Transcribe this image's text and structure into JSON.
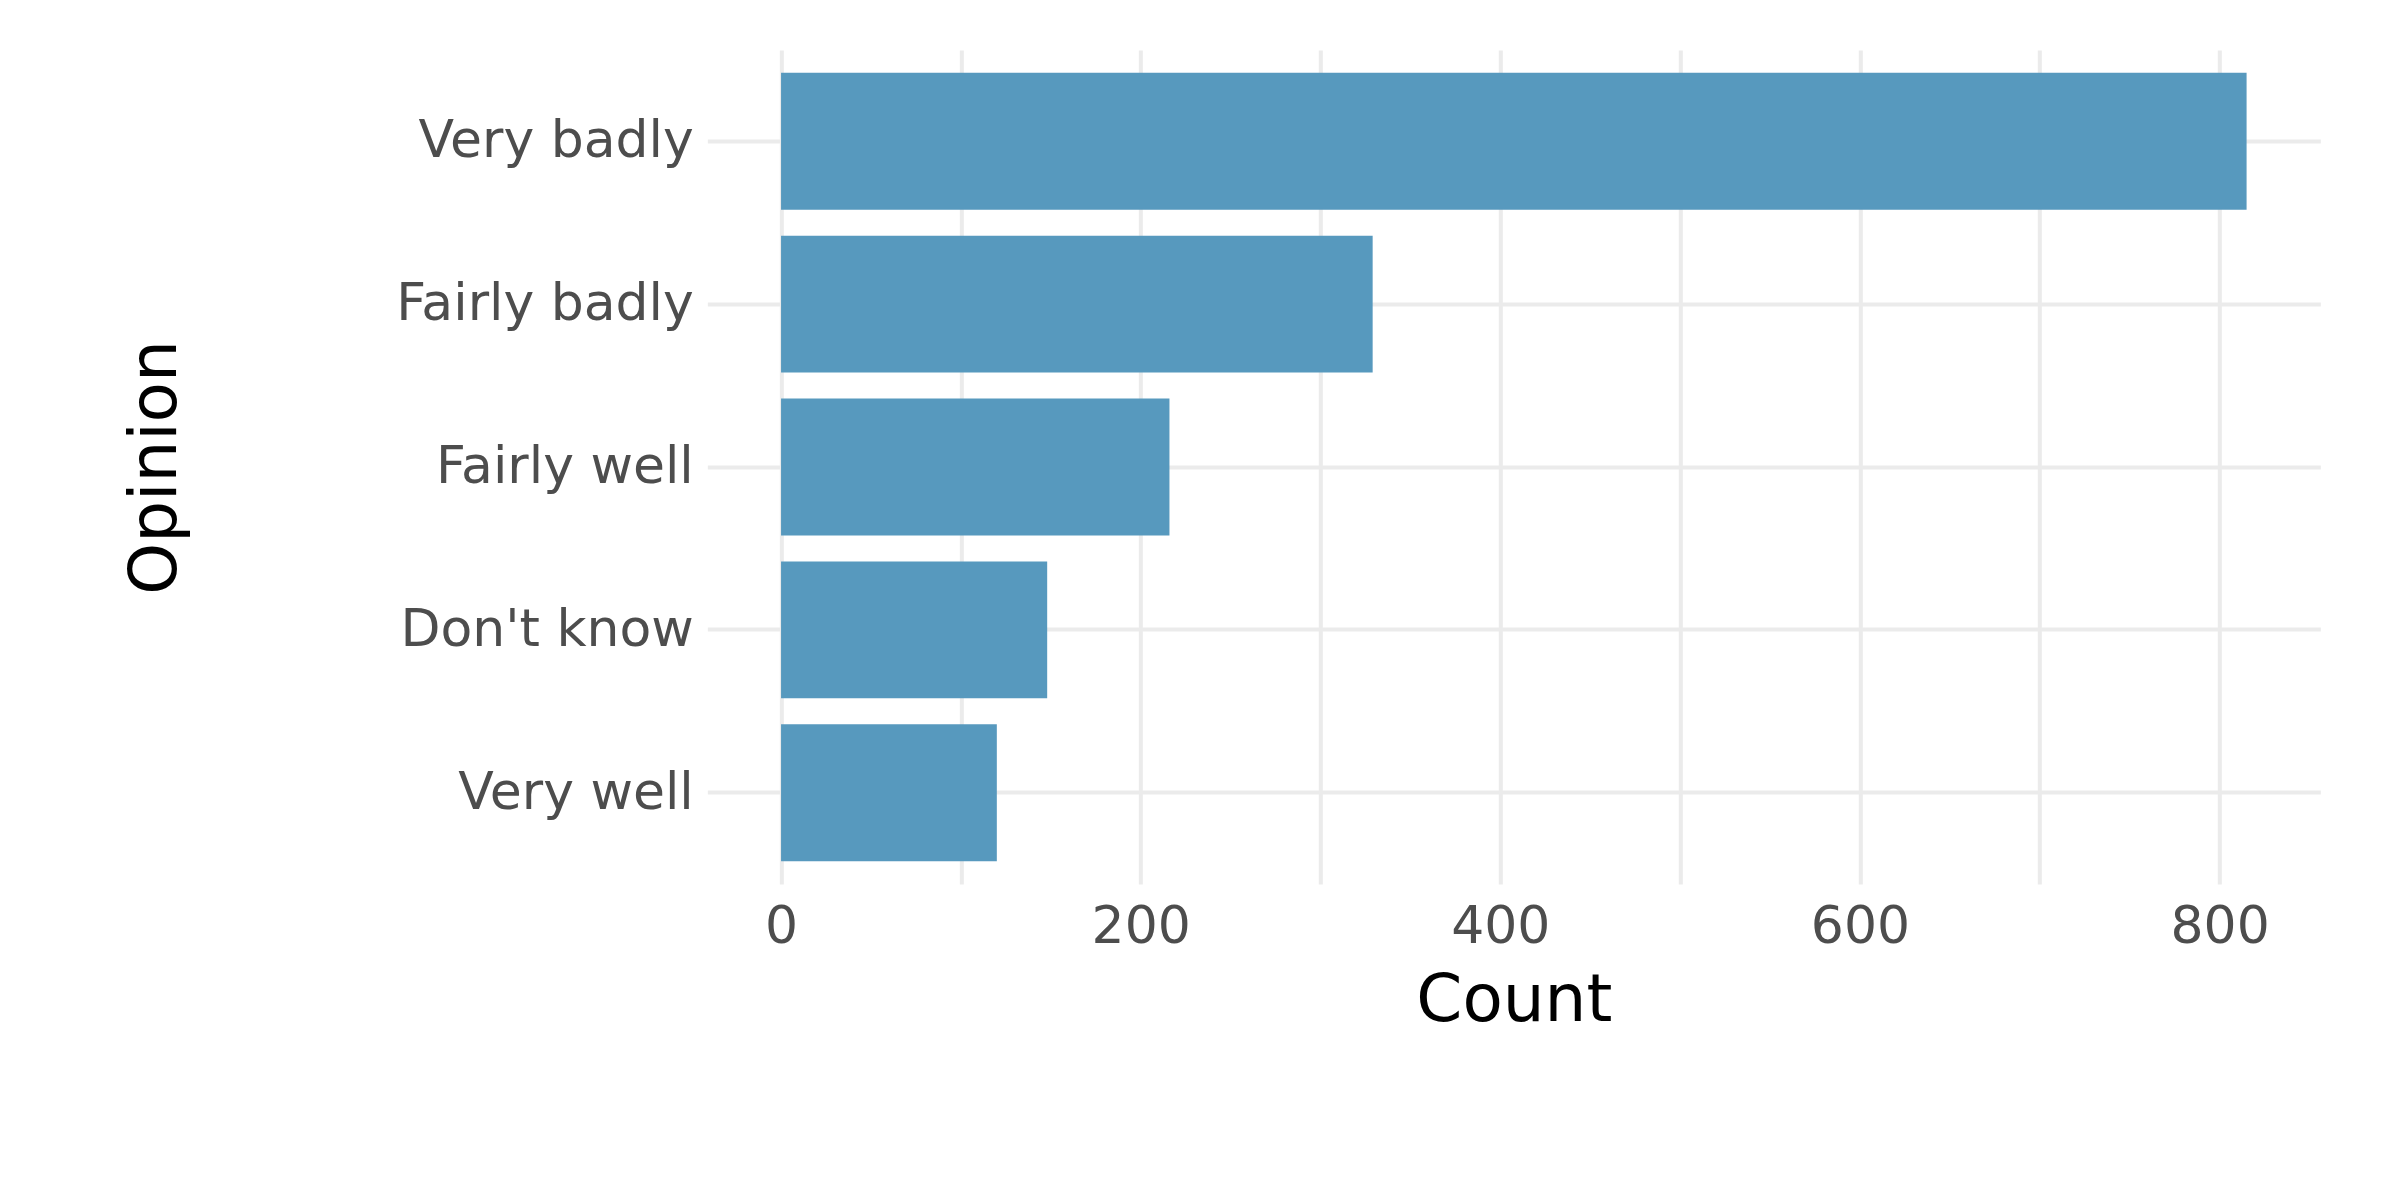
{
  "chart_data": {
    "type": "bar",
    "orientation": "horizontal",
    "xlabel": "Count",
    "ylabel": "Opinion",
    "categories": [
      "Very badly",
      "Fairly badly",
      "Fairly well",
      "Don't know",
      "Very well"
    ],
    "values": [
      815,
      329,
      216,
      148,
      120
    ],
    "color": "#5799be",
    "xlim": [
      -41,
      856
    ],
    "xticks": [
      0,
      {
        "value": 100,
        "label": null
      },
      200,
      {
        "value": 300,
        "label": null
      },
      400,
      {
        "value": 500,
        "label": null
      },
      600,
      {
        "value": 700,
        "label": null
      },
      800
    ],
    "grid": true
  }
}
